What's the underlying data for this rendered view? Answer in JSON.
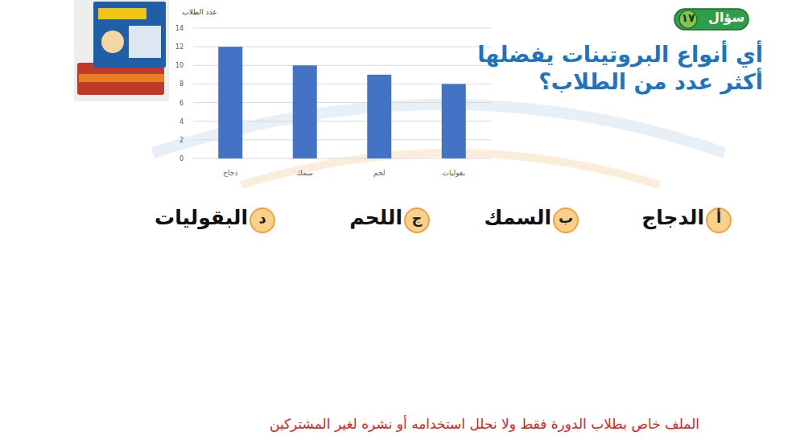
{
  "chart_data": {
    "type": "bar",
    "y_label": "عدد الطلاب",
    "categories": [
      "دجاج",
      "سمك",
      "لحم",
      "بقوليات"
    ],
    "values": [
      12,
      10,
      9,
      8
    ],
    "color": "#4472c4",
    "ylim": [
      0,
      14
    ],
    "yticks": [
      0,
      2,
      4,
      6,
      8,
      10,
      12,
      14
    ],
    "grid": true
  },
  "question": {
    "badge": "سؤال",
    "number": "١٧",
    "lines": [
      "أي أنواع البروتينات يفضلها",
      "أكثر عدد من الطلاب؟"
    ]
  },
  "options": [
    {
      "letter": "أ",
      "text": "الدجاج"
    },
    {
      "letter": "ب",
      "text": "السمك"
    },
    {
      "letter": "ج",
      "text": "اللحم"
    },
    {
      "letter": "د",
      "text": "البقوليات"
    }
  ],
  "footer": "الملف خاص بطلاب الدورة فقط ولا نحلل استخدامه أو نشره لغير المشتركين"
}
